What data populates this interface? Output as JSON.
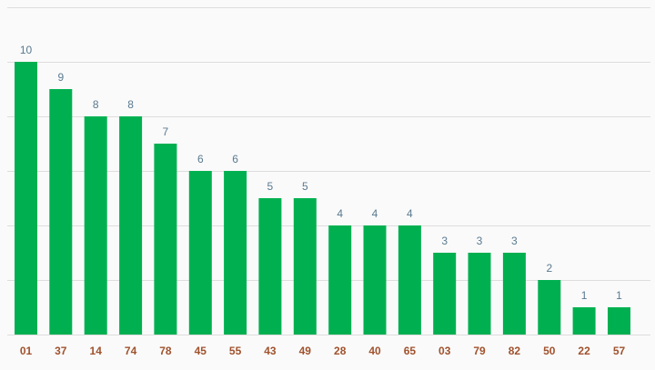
{
  "chart_data": {
    "type": "bar",
    "categories": [
      "01",
      "37",
      "14",
      "74",
      "78",
      "45",
      "55",
      "43",
      "49",
      "28",
      "40",
      "65",
      "03",
      "79",
      "82",
      "50",
      "22",
      "57"
    ],
    "values": [
      10,
      9,
      8,
      8,
      7,
      6,
      6,
      5,
      5,
      4,
      4,
      4,
      3,
      3,
      3,
      2,
      1,
      1
    ],
    "ylim": [
      0,
      12
    ],
    "grid": true,
    "colors": {
      "bar": "#00b050",
      "value_label": "#5a7a90",
      "tick_label": "#a0522d",
      "grid": "#dddddd"
    }
  }
}
